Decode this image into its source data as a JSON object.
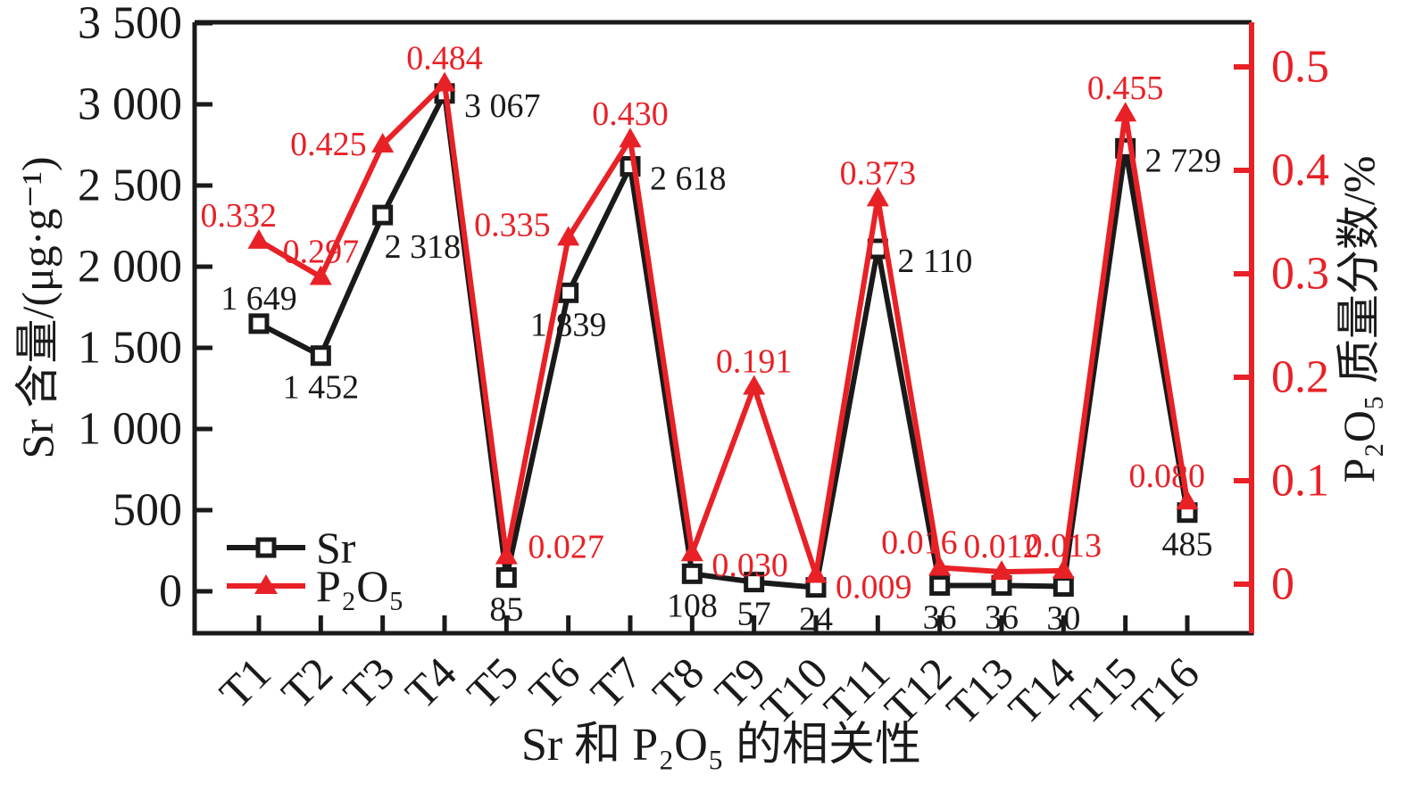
{
  "figure": {
    "background": "#ffffff",
    "black": "#1a1a1a",
    "red": "#e82127"
  },
  "chart_data": {
    "type": "line",
    "title": "",
    "xlabel": "Sr 和 P₂O₅ 的相关性",
    "categories": [
      "T1",
      "T2",
      "T3",
      "T4",
      "T5",
      "T6",
      "T7",
      "T8",
      "T9",
      "T10",
      "T11",
      "T12",
      "T13",
      "T14",
      "T15",
      "T16"
    ],
    "grid": false,
    "left_axis": {
      "label": "Sr 含量/(μg·g⁻¹)",
      "color": "#1a1a1a",
      "range": [
        0,
        3500
      ],
      "tick_values": [
        0,
        500,
        1000,
        1500,
        2000,
        2500,
        3000,
        3500
      ],
      "tick_labels": [
        "0",
        "500",
        "1 000",
        "1 500",
        "2 000",
        "2 500",
        "3 000",
        "3 500"
      ]
    },
    "right_axis": {
      "label": "P₂O₅ 质量分数/%",
      "color": "#e82127",
      "range": [
        0,
        0.5
      ],
      "tick_values": [
        0,
        0.1,
        0.2,
        0.3,
        0.4,
        0.5
      ],
      "tick_labels": [
        "0",
        "0.1",
        "0.2",
        "0.3",
        "0.4",
        "0.5"
      ]
    },
    "legend": {
      "position": "inside-lower-left",
      "items": [
        {
          "label": "Sr",
          "marker": "open-square",
          "color": "#1a1a1a"
        },
        {
          "label": "P₂O₅",
          "marker": "filled-triangle",
          "color": "#e82127"
        }
      ]
    },
    "series": [
      {
        "name": "Sr",
        "axis": "left",
        "color": "#1a1a1a",
        "marker": "open-square",
        "values": [
          1649,
          1452,
          2318,
          3067,
          85,
          1839,
          2618,
          108,
          57,
          24,
          2110,
          36,
          36,
          30,
          2729,
          485
        ],
        "labels": [
          "1 649",
          "1 452",
          "2 318",
          "3 067",
          "85",
          "1 839",
          "2 618",
          "108",
          "57",
          "24",
          "2 110",
          "36",
          "36",
          "30",
          "2 729",
          "485"
        ],
        "label_pos": [
          "above",
          "below",
          "below-right",
          "right",
          "below",
          "below",
          "right",
          "below",
          "below",
          "below",
          "right",
          "below",
          "below",
          "below",
          "right",
          "below"
        ]
      },
      {
        "name": "P₂O₅",
        "axis": "right",
        "color": "#e82127",
        "marker": "filled-triangle",
        "values": [
          0.332,
          0.297,
          0.425,
          0.484,
          0.027,
          0.335,
          0.43,
          0.03,
          0.191,
          0.009,
          0.373,
          0.016,
          0.012,
          0.013,
          0.455,
          0.08
        ],
        "labels": [
          "0.332",
          "0.297",
          "0.425",
          "0.484",
          "0.027",
          "0.335",
          "0.430",
          "0.030",
          "0.191",
          "0.009",
          "0.373",
          "0.016",
          "0.012",
          "0.013",
          "0.455",
          "0.080"
        ],
        "label_pos": [
          "above-left",
          "above",
          "left",
          "above",
          "right-above",
          "left-above",
          "above",
          "right",
          "above",
          "right",
          "above",
          "above-left",
          "above",
          "above",
          "above",
          "above-left"
        ]
      }
    ]
  }
}
